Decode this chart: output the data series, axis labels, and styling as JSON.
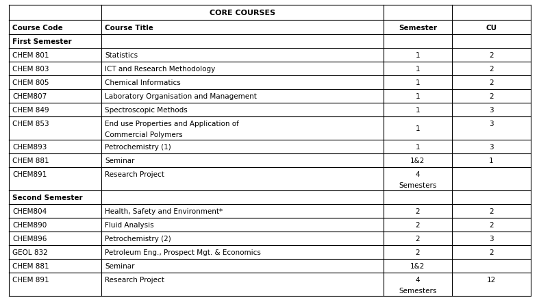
{
  "title": "CORE COURSES",
  "headers": [
    "Course Code",
    "Course Title",
    "Semester",
    "CU"
  ],
  "rows": [
    {
      "type": "section",
      "label": "First Semester"
    },
    {
      "type": "data",
      "code": "CHEM 801",
      "title": "Statistics",
      "semester": "1",
      "cu": "2"
    },
    {
      "type": "data",
      "code": "CHEM 803",
      "title": "ICT and Research Methodology",
      "semester": "1",
      "cu": "2"
    },
    {
      "type": "data",
      "code": "CHEM 805",
      "title": "Chemical Informatics",
      "semester": "1",
      "cu": "2"
    },
    {
      "type": "data",
      "code": "CHEM807",
      "title": "Laboratory Organisation and Management",
      "semester": "1",
      "cu": "2"
    },
    {
      "type": "data",
      "code": "CHEM 849",
      "title": "Spectroscopic Methods",
      "semester": "1",
      "cu": "3"
    },
    {
      "type": "data2",
      "code": "CHEM 853",
      "title1": "End use Properties and Application of",
      "title2": "Commercial Polymers",
      "semester": "1",
      "cu": "3"
    },
    {
      "type": "data",
      "code": "CHEM893",
      "title": "Petrochemistry (1)",
      "semester": "1",
      "cu": "3"
    },
    {
      "type": "data",
      "code": "CHEM 881",
      "title": "Seminar",
      "semester": "1&2",
      "cu": "1"
    },
    {
      "type": "data2",
      "code": "CHEM891",
      "title1": "Research Project",
      "title2": "",
      "semester1": "4",
      "semester2": "Semesters",
      "cu": ""
    },
    {
      "type": "section",
      "label": "Second Semester"
    },
    {
      "type": "data",
      "code": "CHEM804",
      "title": "Health, Safety and Environment*",
      "semester": "2",
      "cu": "2"
    },
    {
      "type": "data",
      "code": "CHEM890",
      "title": "Fluid Analysis",
      "semester": "2",
      "cu": "2"
    },
    {
      "type": "data",
      "code": "CHEM896",
      "title": "Petrochemistry (2)",
      "semester": "2",
      "cu": "3"
    },
    {
      "type": "data",
      "code": "GEOL 832",
      "title": "Petroleum Eng., Prospect Mgt. & Economics",
      "semester": "2",
      "cu": "2"
    },
    {
      "type": "data",
      "code": "CHEM 881",
      "title": "Seminar",
      "semester": "1&2",
      "cu": ""
    },
    {
      "type": "data2",
      "code": "CHEM 891",
      "title1": "Research Project",
      "title2": "",
      "semester1": "4",
      "semester2": "Semesters",
      "cu": "12"
    }
  ],
  "bg_color": "#ffffff",
  "border_color": "#000000",
  "text_color": "#000000"
}
